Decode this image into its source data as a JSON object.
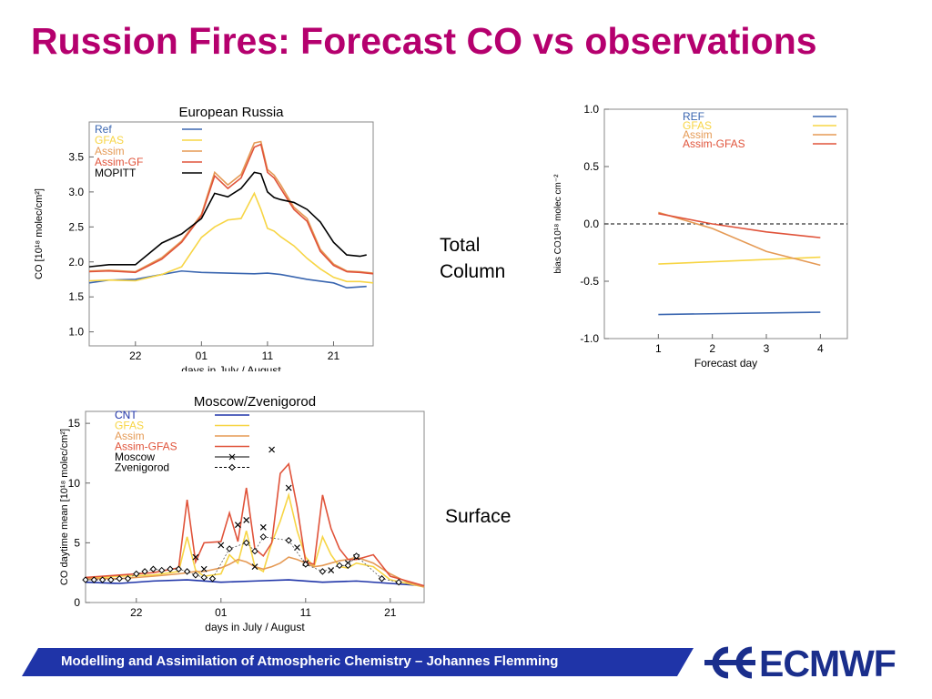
{
  "title": "Russion Fires: Forecast CO vs observations",
  "labels": {
    "total_column": "Total\nColumn",
    "surface": "Surface"
  },
  "footer": {
    "text": "Modelling and Assimilation of Atmospheric Chemistry  – Johannes Flemming",
    "logo": "ECMWF"
  },
  "colors": {
    "title": "#b5006e",
    "footer": "#1f34a8",
    "ref": "#3a66b0",
    "gfas": "#f7d545",
    "assim": "#e59a55",
    "assimgf": "#e0533a",
    "obs": "#000000"
  },
  "chart_data": [
    {
      "type": "line",
      "title": "European Russia",
      "xlabel": "days in July / August",
      "ylabel": "CO [10¹⁸ molec/cm²]",
      "xticks": [
        22,
        32,
        42,
        52
      ],
      "xtick_labels": [
        "22",
        "01",
        "11",
        "21"
      ],
      "xlim": [
        15,
        58
      ],
      "ylim": [
        0.8,
        4.0
      ],
      "yticks": [
        1.0,
        1.5,
        2.0,
        2.5,
        3.0,
        3.5
      ],
      "ytick_labels": [
        "1.0",
        "1.5",
        "2.0",
        "2.5",
        "3.0",
        "3.5"
      ],
      "legend_position": "top-left",
      "series": [
        {
          "name": "Ref",
          "color": "#3a66b0",
          "x": [
            15,
            18,
            22,
            26,
            29,
            32,
            36,
            40,
            42,
            44,
            48,
            52,
            54,
            57
          ],
          "y": [
            1.7,
            1.74,
            1.75,
            1.82,
            1.87,
            1.85,
            1.84,
            1.83,
            1.84,
            1.82,
            1.75,
            1.7,
            1.63,
            1.65
          ]
        },
        {
          "name": "GFAS",
          "color": "#f7d545",
          "x": [
            15,
            18,
            22,
            26,
            29,
            32,
            34,
            36,
            38,
            40,
            41,
            42,
            43,
            44,
            46,
            48,
            50,
            52,
            54,
            56,
            58
          ],
          "y": [
            1.73,
            1.74,
            1.73,
            1.82,
            1.93,
            2.35,
            2.5,
            2.6,
            2.62,
            2.98,
            2.75,
            2.48,
            2.44,
            2.36,
            2.23,
            2.05,
            1.9,
            1.78,
            1.72,
            1.72,
            1.7
          ]
        },
        {
          "name": "Assim",
          "color": "#e59a55",
          "x": [
            15,
            18,
            22,
            26,
            29,
            32,
            34,
            36,
            38,
            40,
            41,
            42,
            43,
            44,
            46,
            48,
            50,
            52,
            54,
            56,
            58
          ],
          "y": [
            1.87,
            1.88,
            1.86,
            2.06,
            2.3,
            2.68,
            3.28,
            3.1,
            3.25,
            3.7,
            3.72,
            3.32,
            3.24,
            3.1,
            2.78,
            2.62,
            2.18,
            1.97,
            1.87,
            1.86,
            1.84
          ]
        },
        {
          "name": "Assim-GF",
          "color": "#e0533a",
          "x": [
            15,
            18,
            22,
            26,
            29,
            32,
            34,
            36,
            38,
            40,
            41,
            42,
            43,
            44,
            46,
            48,
            50,
            52,
            54,
            56,
            58
          ],
          "y": [
            1.86,
            1.87,
            1.85,
            2.04,
            2.28,
            2.66,
            3.23,
            3.05,
            3.2,
            3.64,
            3.68,
            3.28,
            3.2,
            3.05,
            2.75,
            2.58,
            2.15,
            1.95,
            1.86,
            1.85,
            1.83
          ]
        },
        {
          "name": "MOPITT",
          "color": "#000000",
          "x": [
            15,
            18,
            22,
            26,
            29,
            32,
            34,
            36,
            38,
            40,
            41,
            42,
            43,
            44,
            46,
            48,
            50,
            52,
            54,
            56,
            57
          ],
          "y": [
            1.93,
            1.96,
            1.96,
            2.27,
            2.4,
            2.62,
            2.98,
            2.93,
            3.05,
            3.28,
            3.26,
            3.0,
            2.92,
            2.89,
            2.85,
            2.75,
            2.57,
            2.28,
            2.1,
            2.08,
            2.1
          ]
        }
      ]
    },
    {
      "type": "line",
      "title": "",
      "xlabel": "Forecast day",
      "ylabel": "bias CO10¹⁸ molec cm⁻²",
      "xticks": [
        1,
        2,
        3,
        4
      ],
      "xlim": [
        0,
        4.5
      ],
      "ylim": [
        -1.0,
        1.0
      ],
      "yticks": [
        -1.0,
        -0.5,
        0.0,
        0.5,
        1.0
      ],
      "ytick_labels": [
        "-1.0",
        "-0.5",
        "0.0",
        "0.5",
        "1.0"
      ],
      "zero_line": "dashed",
      "legend_position": "top",
      "series": [
        {
          "name": "REF",
          "color": "#3a66b0",
          "x": [
            1,
            4
          ],
          "y": [
            -0.79,
            -0.77
          ]
        },
        {
          "name": "GFAS",
          "color": "#f7d545",
          "x": [
            1,
            4
          ],
          "y": [
            -0.35,
            -0.29
          ]
        },
        {
          "name": "Assim",
          "color": "#e59a55",
          "x": [
            1,
            2,
            3,
            4
          ],
          "y": [
            0.1,
            -0.04,
            -0.24,
            -0.36
          ]
        },
        {
          "name": "Assim-GFAS",
          "color": "#e0533a",
          "x": [
            1,
            2,
            3,
            4
          ],
          "y": [
            0.09,
            0.0,
            -0.07,
            -0.12
          ]
        }
      ]
    },
    {
      "type": "line",
      "title": "Moscow/Zvenigorod",
      "xlabel": "days in July / August",
      "ylabel": "CO daytime mean [10¹⁸ molec/cm²]",
      "xticks": [
        22,
        32,
        42,
        52
      ],
      "xtick_labels": [
        "22",
        "01",
        "11",
        "21"
      ],
      "xlim": [
        16,
        56
      ],
      "ylim": [
        0,
        16
      ],
      "yticks": [
        0,
        5,
        10,
        15
      ],
      "ytick_labels": [
        "0",
        "5",
        "10",
        "15"
      ],
      "legend_position": "top-left",
      "series": [
        {
          "name": "CNT",
          "color": "#1f34a8",
          "x": [
            16,
            20,
            24,
            28,
            32,
            36,
            40,
            44,
            48,
            52,
            56
          ],
          "y": [
            1.7,
            1.6,
            1.8,
            1.9,
            1.7,
            1.8,
            1.9,
            1.7,
            1.8,
            1.6,
            1.4
          ]
        },
        {
          "name": "GFAS",
          "color": "#f7d545",
          "x": [
            16,
            20,
            24,
            27,
            28,
            29,
            30,
            32,
            33,
            34,
            35,
            36,
            37,
            38,
            39,
            40,
            41,
            42,
            43,
            44,
            45,
            46,
            47,
            48,
            50,
            52,
            54,
            56
          ],
          "y": [
            2.0,
            2.2,
            2.3,
            2.6,
            5.5,
            2.7,
            2.2,
            2.4,
            4.0,
            3.3,
            6.0,
            3.0,
            2.6,
            5.0,
            6.8,
            9.0,
            6.0,
            3.8,
            3.0,
            5.5,
            4.0,
            3.0,
            2.9,
            3.3,
            3.0,
            1.9,
            1.6,
            1.3
          ]
        },
        {
          "name": "Assim",
          "color": "#e59a55",
          "x": [
            16,
            20,
            24,
            27,
            28,
            29,
            30,
            32,
            33,
            34,
            35,
            36,
            37,
            38,
            39,
            40,
            41,
            42,
            43,
            44,
            45,
            46,
            47,
            48,
            50,
            52,
            54,
            56
          ],
          "y": [
            2.0,
            2.0,
            2.2,
            2.4,
            2.5,
            2.6,
            2.6,
            2.9,
            3.2,
            3.6,
            3.4,
            3.0,
            2.8,
            3.0,
            3.3,
            3.8,
            3.6,
            3.3,
            3.0,
            3.1,
            3.3,
            3.5,
            3.6,
            3.8,
            3.3,
            2.4,
            1.7,
            1.3
          ]
        },
        {
          "name": "Assim-GFAS",
          "color": "#e0533a",
          "x": [
            16,
            20,
            24,
            27,
            28,
            29,
            30,
            32,
            33,
            34,
            35,
            36,
            37,
            38,
            39,
            40,
            41,
            42,
            43,
            44,
            45,
            46,
            47,
            48,
            50,
            52,
            54,
            56
          ],
          "y": [
            2.1,
            2.3,
            2.5,
            2.9,
            8.6,
            3.4,
            5.0,
            5.1,
            7.5,
            5.1,
            9.6,
            4.5,
            3.9,
            5.0,
            10.8,
            11.6,
            8.0,
            3.4,
            3.2,
            9.0,
            6.2,
            4.5,
            3.6,
            3.6,
            4.0,
            2.2,
            1.8,
            1.4
          ]
        },
        {
          "name": "Moscow",
          "color": "#000000",
          "marker": "x",
          "x": [
            29,
            30,
            32,
            34,
            35,
            36,
            37,
            38,
            40,
            41,
            42,
            45,
            47,
            48
          ],
          "y": [
            3.8,
            2.8,
            4.8,
            6.5,
            6.9,
            3.0,
            6.3,
            12.8,
            9.6,
            4.6,
            3.3,
            2.7,
            3.3,
            3.8
          ]
        },
        {
          "name": "Zvenigorod",
          "color": "#000000",
          "marker": "diamond",
          "x": [
            16,
            17,
            18,
            19,
            20,
            21,
            22,
            23,
            24,
            25,
            26,
            27,
            28,
            29,
            30,
            31,
            33,
            35,
            36,
            37,
            40,
            42,
            44,
            46,
            47,
            48,
            51,
            53
          ],
          "y": [
            1.9,
            1.9,
            1.9,
            1.9,
            2.0,
            2.0,
            2.4,
            2.6,
            2.8,
            2.7,
            2.8,
            2.8,
            2.6,
            2.3,
            2.1,
            2.0,
            4.5,
            5.0,
            4.3,
            5.5,
            5.2,
            3.2,
            2.6,
            3.1,
            3.1,
            3.9,
            2.0,
            1.7
          ]
        }
      ]
    }
  ]
}
